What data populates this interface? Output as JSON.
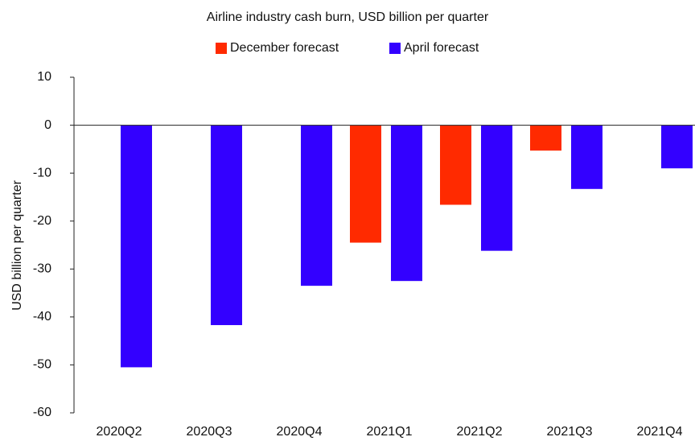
{
  "chart_data": {
    "type": "bar",
    "title": "Airline industry cash burn, USD billion per quarter",
    "y_label": "USD billion per quarter",
    "categories": [
      "2020Q2",
      "2020Q3",
      "2020Q4",
      "2021Q1",
      "2021Q2",
      "2021Q3",
      "2021Q4"
    ],
    "series": [
      {
        "name": "December forecast",
        "color": "#ff2a00",
        "values": [
          null,
          null,
          null,
          -24.5,
          -16.6,
          -5.3,
          null
        ]
      },
      {
        "name": "April forecast",
        "color": "#3300ff",
        "values": [
          -50.5,
          -41.7,
          -33.5,
          -32.5,
          -26.2,
          -13.3,
          -9.0
        ]
      }
    ],
    "ylim": [
      -60,
      10
    ],
    "yticks": [
      10,
      0,
      -10,
      -20,
      -30,
      -40,
      -50,
      -60
    ],
    "legend": "top"
  }
}
